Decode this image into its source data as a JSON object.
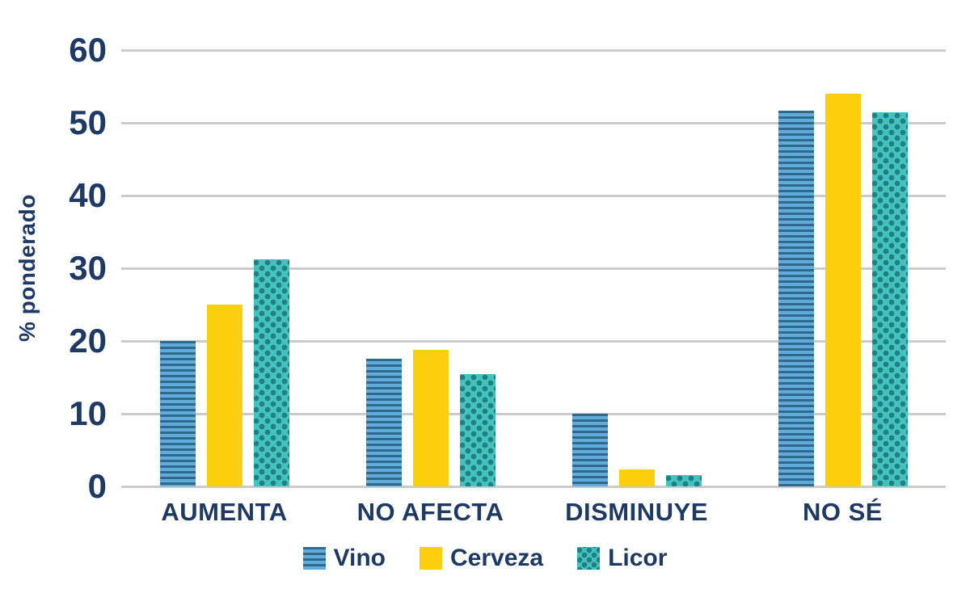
{
  "chart_data": {
    "type": "bar",
    "title": "",
    "xlabel": "",
    "ylabel": "% ponderado",
    "ylim": [
      0,
      60
    ],
    "yticks": [
      0,
      10,
      20,
      30,
      40,
      50,
      60
    ],
    "grid": "horizontal",
    "legend_position": "bottom",
    "categories": [
      "AUMENTA",
      "NO AFECTA",
      "DISMINUYE",
      "NO SÉ"
    ],
    "series": [
      {
        "name": "Vino",
        "pattern": "horizontal-stripes",
        "fill": "#61ABDA",
        "pattern_color": "#31688E",
        "values": [
          20,
          17.6,
          10,
          51.7
        ]
      },
      {
        "name": "Cerveza",
        "pattern": "solid",
        "fill": "#FBCF0E",
        "pattern_color": "#FBCF0E",
        "values": [
          25,
          18.8,
          2.3,
          54
        ]
      },
      {
        "name": "Licor",
        "pattern": "dots",
        "fill": "#44C2C0",
        "pattern_color": "#21807F",
        "values": [
          31.2,
          15.5,
          1.6,
          51.5
        ]
      }
    ],
    "colors": {
      "axis_text": "#1E3A64",
      "gridline": "#CBCBCB",
      "background": "#FFFFFF"
    }
  }
}
